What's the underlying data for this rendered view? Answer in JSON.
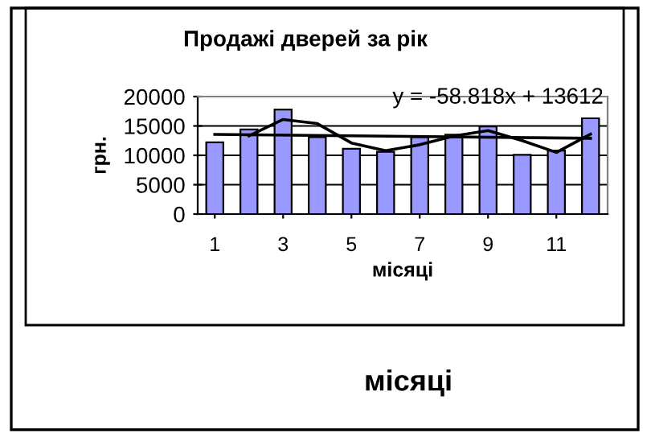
{
  "chart_data": {
    "type": "bar",
    "title": "Продажі дверей за рік",
    "xlabel": "місяці",
    "ylabel": "грн.",
    "x": [
      1,
      2,
      3,
      4,
      5,
      6,
      7,
      8,
      9,
      10,
      11,
      12
    ],
    "series": [
      {
        "color": "#9999ff",
        "values": [
          12200,
          14400,
          17800,
          13100,
          11100,
          10600,
          13100,
          13500,
          14900,
          10100,
          10800,
          16300
        ]
      },
      {
        "type": "line",
        "color": "#000000",
        "x": [
          2,
          3,
          4,
          5,
          6,
          7,
          8,
          9,
          10,
          11,
          12
        ],
        "values": [
          13300,
          16100,
          15400,
          12100,
          10800,
          11800,
          13300,
          14200,
          12500,
          10500,
          13600
        ]
      },
      {
        "type": "line",
        "color": "#000000",
        "x": [
          1,
          12
        ],
        "values": [
          13550,
          12900
        ]
      }
    ],
    "xlim": [
      0.5,
      12.5
    ],
    "xticks": [
      1,
      3,
      5,
      7,
      9,
      11
    ],
    "ylim": [
      0,
      20000
    ],
    "yticks": [
      0,
      5000,
      10000,
      15000,
      20000
    ],
    "grid": "y",
    "annotations": [
      "y = -58.818x + 13612",
      "місяці"
    ]
  }
}
